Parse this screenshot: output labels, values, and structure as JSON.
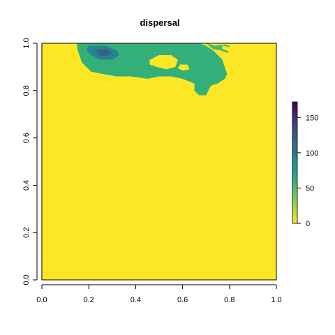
{
  "chart_data": {
    "type": "heatmap",
    "title": "dispersal",
    "xlabel": "",
    "ylabel": "",
    "xlim": [
      0,
      1
    ],
    "ylim": [
      0,
      1
    ],
    "x_ticks": [
      {
        "value": 0,
        "label": "0.0"
      },
      {
        "value": 0.2,
        "label": "0.2"
      },
      {
        "value": 0.4,
        "label": "0.4"
      },
      {
        "value": 0.6,
        "label": "0.6"
      },
      {
        "value": 0.8,
        "label": "0.8"
      },
      {
        "value": 1,
        "label": "1.0"
      }
    ],
    "y_ticks": [
      {
        "value": 0,
        "label": "0.0"
      },
      {
        "value": 0.2,
        "label": "0.2"
      },
      {
        "value": 0.4,
        "label": "0.4"
      },
      {
        "value": 0.6,
        "label": "0.6"
      },
      {
        "value": 0.8,
        "label": "0.8"
      },
      {
        "value": 1,
        "label": "1.0"
      }
    ],
    "background_value": 0,
    "colorbar": {
      "range": [
        0,
        172
      ],
      "ticks": [
        {
          "value": 0,
          "label": "0"
        },
        {
          "value": 50,
          "label": "50"
        },
        {
          "value": 100,
          "label": "100"
        },
        {
          "value": 150,
          "label": "150"
        }
      ],
      "colors": [
        "#fde725",
        "#7ad151",
        "#22a884",
        "#2a788e",
        "#414487",
        "#440154"
      ]
    },
    "regions": [
      {
        "value": 62,
        "polygon": [
          [
            0.15,
            1.0
          ],
          [
            0.3,
            1.0
          ],
          [
            0.45,
            1.0
          ],
          [
            0.55,
            1.0
          ],
          [
            0.67,
            1.0
          ],
          [
            0.7,
            0.99
          ],
          [
            0.73,
            0.97
          ],
          [
            0.75,
            0.95
          ],
          [
            0.77,
            0.93
          ],
          [
            0.78,
            0.9
          ],
          [
            0.79,
            0.87
          ],
          [
            0.78,
            0.85
          ],
          [
            0.75,
            0.83
          ],
          [
            0.72,
            0.82
          ],
          [
            0.71,
            0.8
          ],
          [
            0.7,
            0.78
          ],
          [
            0.67,
            0.78
          ],
          [
            0.65,
            0.8
          ],
          [
            0.65,
            0.83
          ],
          [
            0.6,
            0.85
          ],
          [
            0.55,
            0.86
          ],
          [
            0.5,
            0.86
          ],
          [
            0.45,
            0.85
          ],
          [
            0.38,
            0.86
          ],
          [
            0.32,
            0.86
          ],
          [
            0.26,
            0.87
          ],
          [
            0.21,
            0.88
          ],
          [
            0.19,
            0.9
          ],
          [
            0.17,
            0.92
          ],
          [
            0.16,
            0.95
          ],
          [
            0.15,
            0.98
          ]
        ]
      },
      {
        "value": 55,
        "polygon": [
          [
            0.7,
            1.0
          ],
          [
            0.74,
            0.99
          ],
          [
            0.78,
            0.995
          ],
          [
            0.8,
            0.99
          ],
          [
            0.81,
            0.97
          ],
          [
            0.79,
            0.96
          ],
          [
            0.76,
            0.97
          ],
          [
            0.73,
            0.975
          ]
        ]
      },
      {
        "value": 95,
        "polygon": [
          [
            0.2,
            0.99
          ],
          [
            0.27,
            0.99
          ],
          [
            0.32,
            0.97
          ],
          [
            0.33,
            0.95
          ],
          [
            0.3,
            0.93
          ],
          [
            0.25,
            0.93
          ],
          [
            0.21,
            0.95
          ],
          [
            0.19,
            0.97
          ]
        ]
      },
      {
        "value": 118,
        "polygon": [
          [
            0.23,
            0.975
          ],
          [
            0.28,
            0.975
          ],
          [
            0.3,
            0.96
          ],
          [
            0.27,
            0.945
          ],
          [
            0.24,
            0.95
          ]
        ]
      },
      {
        "value": 0,
        "polygon": [
          [
            0.46,
            0.93
          ],
          [
            0.5,
            0.95
          ],
          [
            0.55,
            0.95
          ],
          [
            0.58,
            0.93
          ],
          [
            0.57,
            0.9
          ],
          [
            0.53,
            0.89
          ],
          [
            0.49,
            0.9
          ],
          [
            0.46,
            0.91
          ]
        ]
      },
      {
        "value": 0,
        "polygon": [
          [
            0.59,
            0.91
          ],
          [
            0.62,
            0.91
          ],
          [
            0.63,
            0.89
          ],
          [
            0.6,
            0.885
          ],
          [
            0.58,
            0.895
          ]
        ]
      },
      {
        "value": 0,
        "polygon": [
          [
            0.77,
            0.99
          ],
          [
            0.8,
            0.985
          ],
          [
            0.82,
            0.975
          ],
          [
            0.8,
            0.965
          ],
          [
            0.77,
            0.975
          ]
        ]
      }
    ]
  }
}
